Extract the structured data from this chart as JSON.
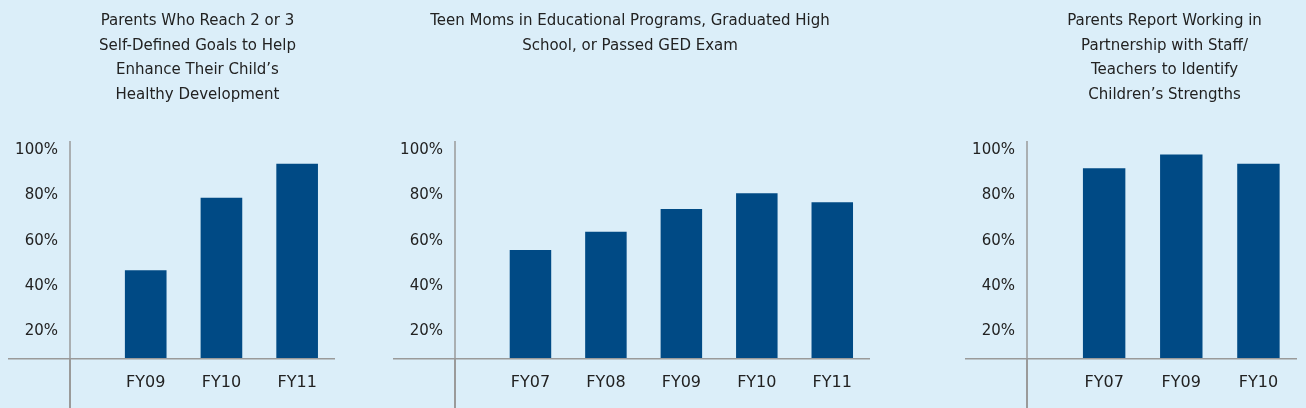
{
  "chart_data": [
    {
      "type": "bar",
      "title": "Parents Who Reach 2 or 3 Self-Defined Goals to Help Enhance Their Child’s Healthy Development",
      "categories": [
        "FY09",
        "FY10",
        "FY11"
      ],
      "values": [
        47,
        79,
        94
      ],
      "color": "#004a85",
      "ylim": [
        8,
        104
      ],
      "yticks": [
        {
          "value": 20,
          "label": "20%"
        },
        {
          "value": 40,
          "label": "40%"
        },
        {
          "value": 60,
          "label": "60%"
        },
        {
          "value": 80,
          "label": "80%"
        },
        {
          "value": 100,
          "label": "100%"
        }
      ]
    },
    {
      "type": "bar",
      "title": "Teen Moms in Educational Programs, Graduated High School, or Passed GED Exam",
      "categories": [
        "FY07",
        "FY08",
        "FY09",
        "FY10",
        "FY11"
      ],
      "values": [
        56,
        64,
        74,
        81,
        77
      ],
      "color": "#004a85",
      "ylim": [
        8,
        104
      ],
      "yticks": [
        {
          "value": 20,
          "label": "20%"
        },
        {
          "value": 40,
          "label": "40%"
        },
        {
          "value": 60,
          "label": "60%"
        },
        {
          "value": 80,
          "label": "80%"
        },
        {
          "value": 100,
          "label": "100%"
        }
      ]
    },
    {
      "type": "bar",
      "title": "Parents Report Working in Partnership with Staff/ Teachers to Identify Children’s Strengths",
      "categories": [
        "FY07",
        "FY09",
        "FY10"
      ],
      "values": [
        92,
        98,
        94
      ],
      "color": "#004a85",
      "ylim": [
        8,
        104
      ],
      "yticks": [
        {
          "value": 20,
          "label": "20%"
        },
        {
          "value": 40,
          "label": "40%"
        },
        {
          "value": 60,
          "label": "60%"
        },
        {
          "value": 80,
          "label": "80%"
        },
        {
          "value": 100,
          "label": "100%"
        }
      ]
    }
  ]
}
